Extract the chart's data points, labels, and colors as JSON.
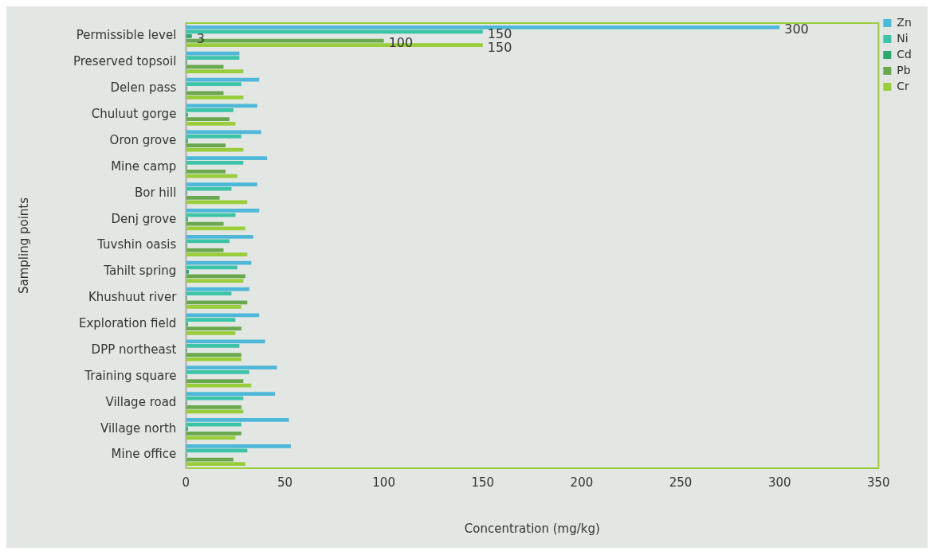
{
  "chart_data": {
    "type": "bar",
    "orientation": "horizontal",
    "xlabel": "Concentration (mg/kg)",
    "ylabel": "Sampling points",
    "categories": [
      "Permissible level",
      "Preserved topsoil",
      "Delen pass",
      "Chuluut gorge",
      "Oron grove",
      "Mine camp",
      "Bor hill",
      "Denj grove",
      "Tuvshin oasis",
      "Tahilt spring",
      "Khushuut river",
      "Exploration field",
      "DPP northeast",
      "Training square",
      "Village road",
      "Village north",
      "Mine office"
    ],
    "series": [
      {
        "name": "Zn",
        "color": "#4fb8d8",
        "values": [
          300,
          27,
          37,
          36,
          38,
          41,
          36,
          37,
          34,
          33,
          32,
          37,
          40,
          46,
          45,
          52,
          53
        ],
        "value_labels": [
          "300",
          null,
          null,
          null,
          null,
          null,
          null,
          null,
          null,
          null,
          null,
          null,
          null,
          null,
          null,
          null,
          null
        ]
      },
      {
        "name": "Ni",
        "color": "#3cc4a8",
        "values": [
          150,
          27,
          28,
          24,
          28,
          29,
          23,
          25,
          22,
          26,
          23,
          25,
          27,
          32,
          29,
          28,
          31
        ],
        "value_labels": [
          "150",
          null,
          null,
          null,
          null,
          null,
          null,
          null,
          null,
          null,
          null,
          null,
          null,
          null,
          null,
          null,
          null
        ]
      },
      {
        "name": "Cd",
        "color": "#2ea870",
        "values": [
          3,
          0.5,
          0.5,
          1,
          1,
          0.5,
          0.5,
          1,
          0.5,
          1.5,
          0.5,
          1,
          0.5,
          0.5,
          0.5,
          1,
          0.5
        ],
        "value_labels": [
          "3",
          null,
          null,
          null,
          null,
          null,
          null,
          null,
          null,
          null,
          null,
          null,
          null,
          null,
          null,
          null,
          null
        ]
      },
      {
        "name": "Pb",
        "color": "#6aa84f",
        "values": [
          100,
          19,
          19,
          22,
          20,
          20,
          17,
          19,
          19,
          30,
          31,
          28,
          28,
          29,
          28,
          28,
          24
        ],
        "value_labels": [
          "100",
          null,
          null,
          null,
          null,
          null,
          null,
          null,
          null,
          null,
          null,
          null,
          null,
          null,
          null,
          null,
          null
        ]
      },
      {
        "name": "Cr",
        "color": "#9acd3c",
        "values": [
          150,
          29,
          29,
          25,
          29,
          26,
          31,
          30,
          31,
          29,
          28,
          25,
          28,
          33,
          29,
          25,
          30
        ],
        "value_labels": [
          "150",
          null,
          null,
          null,
          null,
          null,
          null,
          null,
          null,
          null,
          null,
          null,
          null,
          null,
          null,
          null,
          null
        ]
      }
    ],
    "xlim": [
      0,
      350
    ],
    "xticks": [
      0,
      50,
      100,
      150,
      200,
      250,
      300,
      350
    ],
    "grid": false,
    "legend": "top right"
  }
}
